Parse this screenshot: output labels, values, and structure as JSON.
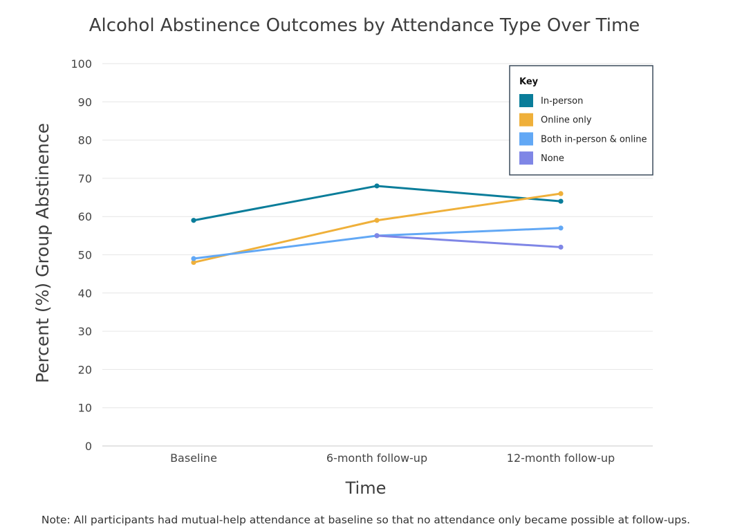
{
  "chart_data": {
    "type": "line",
    "title": "Alcohol Abstinence Outcomes by Attendance Type Over Time",
    "xlabel": "Time",
    "ylabel": "Percent (%) Group Abstinence",
    "categories": [
      "Baseline",
      "6-month follow-up",
      "12-month follow-up"
    ],
    "ylim": [
      0,
      100
    ],
    "yticks": [
      "0",
      "10",
      "20",
      "30",
      "40",
      "50",
      "60",
      "70",
      "80",
      "90",
      "100"
    ],
    "grid": true,
    "legend_title": "Key",
    "legend_position": "top-right",
    "series": [
      {
        "name": "In-person",
        "color": "#0a7d9a",
        "values": [
          59,
          68,
          64
        ]
      },
      {
        "name": "Online only",
        "color": "#efb03a",
        "values": [
          48,
          59,
          66
        ]
      },
      {
        "name": "Both in-person & online",
        "color": "#62a8f5",
        "values": [
          49,
          55,
          57
        ]
      },
      {
        "name": "None",
        "color": "#7f86e6",
        "values": [
          null,
          55,
          52
        ]
      }
    ],
    "note": "Note: All participants had mutual-help attendance at baseline so that no attendance only became possible at follow-ups."
  }
}
